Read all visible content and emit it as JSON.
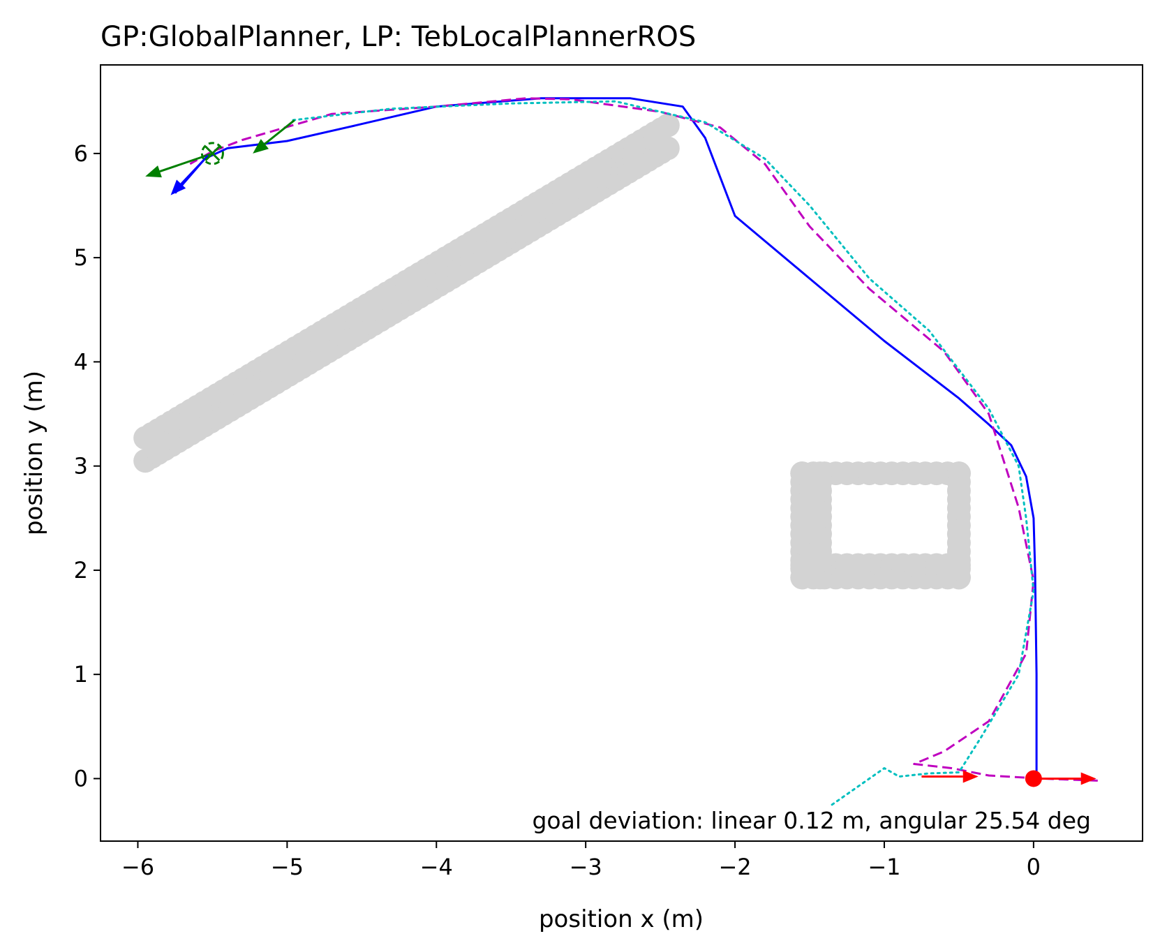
{
  "chart_data": {
    "type": "line",
    "title": "GP:GlobalPlanner, LP: TebLocalPlannerROS",
    "xlabel": "position x (m)",
    "ylabel": "position y (m)",
    "xlim": [
      -6.25,
      0.73
    ],
    "ylim": [
      -0.6,
      6.85
    ],
    "x_ticks": [
      -6,
      -5,
      -4,
      -3,
      -2,
      -1,
      0
    ],
    "x_tick_labels": [
      "−6",
      "−5",
      "−4",
      "−3",
      "−2",
      "−1",
      "0"
    ],
    "y_ticks": [
      0,
      1,
      2,
      3,
      4,
      5,
      6
    ],
    "y_tick_labels": [
      "0",
      "1",
      "2",
      "3",
      "4",
      "5",
      "6"
    ],
    "grid": false,
    "annotation": "goal deviation: linear 0.12 m, angular 25.54 deg",
    "obstacles": {
      "color": "#d3d3d3",
      "diagonal_wall": {
        "from": [
          -5.95,
          3.05
        ],
        "to": [
          -2.45,
          6.05
        ]
      },
      "rectangle": {
        "x_range": [
          -1.55,
          -0.5
        ],
        "y_range": [
          1.93,
          2.93
        ]
      }
    },
    "series": [
      {
        "color": "#0000ff",
        "style": "solid",
        "points": [
          [
            0.02,
            0.05
          ],
          [
            0.02,
            1.0
          ],
          [
            0.01,
            2.0
          ],
          [
            0.0,
            2.5
          ],
          [
            -0.05,
            2.9
          ],
          [
            -0.15,
            3.2
          ],
          [
            -0.3,
            3.4
          ],
          [
            -0.5,
            3.65
          ],
          [
            -1.0,
            4.2
          ],
          [
            -1.5,
            4.8
          ],
          [
            -2.0,
            5.4
          ],
          [
            -2.2,
            6.15
          ],
          [
            -2.35,
            6.45
          ],
          [
            -2.7,
            6.53
          ],
          [
            -3.3,
            6.53
          ],
          [
            -4.0,
            6.45
          ],
          [
            -4.6,
            6.25
          ],
          [
            -5.0,
            6.12
          ],
          [
            -5.4,
            6.05
          ],
          [
            -5.55,
            5.95
          ],
          [
            -5.75,
            5.62
          ]
        ]
      },
      {
        "color": "#bf00bf",
        "style": "dashed",
        "points": [
          [
            0.43,
            -0.02
          ],
          [
            0.05,
            0.0
          ],
          [
            -0.3,
            0.03
          ],
          [
            -0.55,
            0.1
          ],
          [
            -0.8,
            0.14
          ],
          [
            -0.6,
            0.26
          ],
          [
            -0.3,
            0.55
          ],
          [
            -0.05,
            1.2
          ],
          [
            0.0,
            1.9
          ],
          [
            -0.1,
            2.6
          ],
          [
            -0.3,
            3.5
          ],
          [
            -0.6,
            4.1
          ],
          [
            -1.1,
            4.7
          ],
          [
            -1.5,
            5.3
          ],
          [
            -1.8,
            5.9
          ],
          [
            -2.1,
            6.25
          ],
          [
            -2.5,
            6.4
          ],
          [
            -3.1,
            6.52
          ],
          [
            -3.4,
            6.53
          ],
          [
            -4.0,
            6.45
          ],
          [
            -4.7,
            6.38
          ],
          [
            -5.3,
            6.13
          ],
          [
            -5.5,
            6.02
          ],
          [
            -5.65,
            5.9
          ]
        ]
      },
      {
        "color": "#00bfbf",
        "style": "dotted",
        "points": [
          [
            -1.35,
            -0.25
          ],
          [
            -1.15,
            -0.05
          ],
          [
            -1.0,
            0.1
          ],
          [
            -0.9,
            0.02
          ],
          [
            -0.7,
            0.05
          ],
          [
            -0.5,
            0.06
          ],
          [
            -0.35,
            0.4
          ],
          [
            -0.1,
            1.0
          ],
          [
            0.0,
            1.8
          ],
          [
            -0.05,
            2.5
          ],
          [
            -0.1,
            3.0
          ],
          [
            -0.3,
            3.55
          ],
          [
            -0.7,
            4.3
          ],
          [
            -1.1,
            4.8
          ],
          [
            -1.5,
            5.5
          ],
          [
            -1.8,
            5.95
          ],
          [
            -2.2,
            6.3
          ],
          [
            -2.8,
            6.5
          ],
          [
            -3.5,
            6.48
          ],
          [
            -4.3,
            6.43
          ],
          [
            -4.96,
            6.32
          ]
        ]
      }
    ],
    "start": {
      "x": 0.0,
      "y": 0.0,
      "color": "#ff0000"
    },
    "goal": {
      "x": -5.5,
      "y": 6.0,
      "color": "#007f00"
    },
    "arrows": [
      {
        "color": "#ff0000",
        "from": [
          0.0,
          0.0
        ],
        "to": [
          0.42,
          0.0
        ]
      },
      {
        "color": "#ff0000",
        "from": [
          -0.75,
          0.02
        ],
        "to": [
          -0.37,
          0.02
        ]
      },
      {
        "color": "#007f00",
        "from": [
          -5.5,
          6.0
        ],
        "to": [
          -5.95,
          5.78
        ]
      },
      {
        "color": "#007f00",
        "from": [
          -4.95,
          6.32
        ],
        "to": [
          -5.23,
          6.0
        ]
      },
      {
        "color": "#0000ff",
        "from": [
          -5.53,
          5.98
        ],
        "to": [
          -5.78,
          5.6
        ]
      }
    ]
  }
}
